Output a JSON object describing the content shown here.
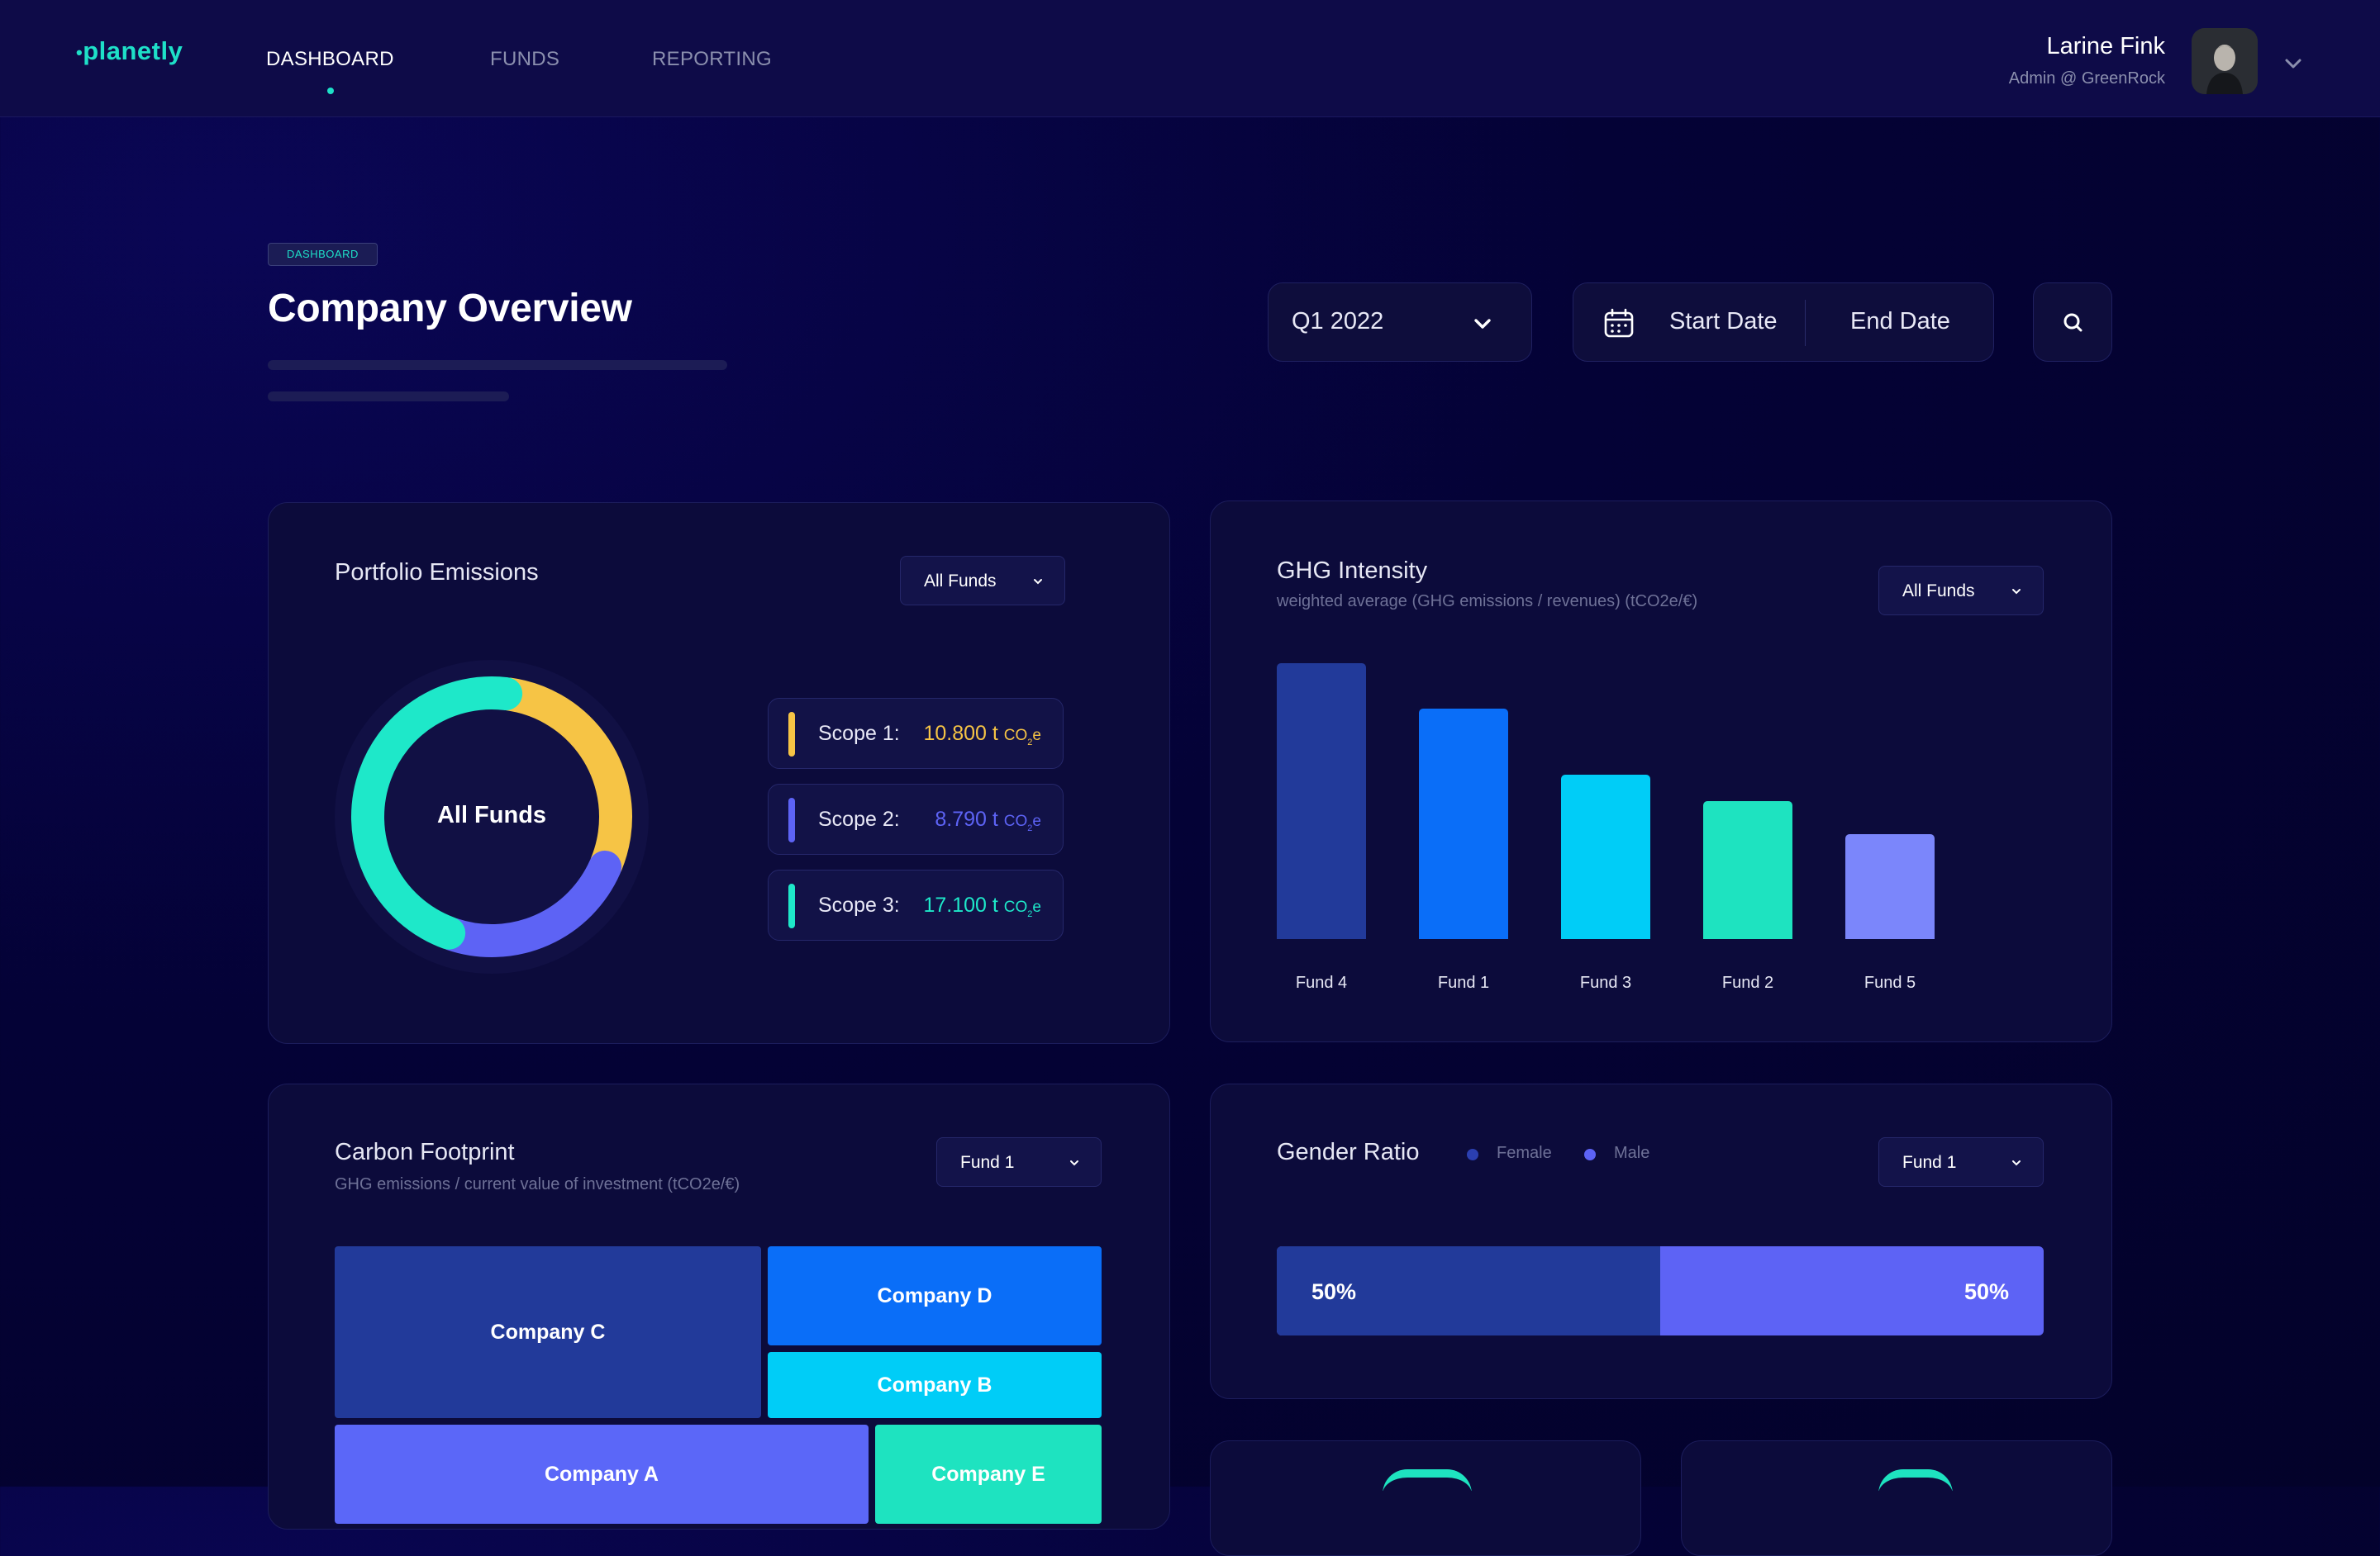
{
  "nav": {
    "logo": "planetly",
    "links": [
      {
        "label": "DASHBOARD",
        "active": true
      },
      {
        "label": "FUNDS",
        "active": false
      },
      {
        "label": "REPORTING",
        "active": false
      }
    ]
  },
  "user": {
    "name": "Larine Fink",
    "role": "Admin @ GreenRock"
  },
  "header": {
    "breadcrumb": "DASHBOARD",
    "title": "Company Overview"
  },
  "filters": {
    "period": "Q1 2022",
    "start_date": "Start Date",
    "end_date": "End Date"
  },
  "portfolio_emissions": {
    "title": "Portfolio Emissions",
    "filter": "All Funds",
    "donut_label": "All Funds",
    "scopes": [
      {
        "name": "Scope 1:",
        "value": "10.800 t",
        "unit": "CO",
        "unit_sub": "2",
        "unit_tail": "e",
        "color": "#f6c445"
      },
      {
        "name": "Scope 2:",
        "value": "8.790 t",
        "unit": "CO",
        "unit_sub": "2",
        "unit_tail": "e",
        "color": "#5d63f5"
      },
      {
        "name": "Scope 3:",
        "value": "17.100 t",
        "unit": "CO",
        "unit_sub": "2",
        "unit_tail": "e",
        "color": "#1ee8c9"
      }
    ]
  },
  "ghg_intensity": {
    "title": "GHG Intensity",
    "subtitle": "weighted average (GHG emissions / revenues) (tCO2e/€)",
    "filter": "All Funds"
  },
  "carbon_footprint": {
    "title": "Carbon Footprint",
    "subtitle": "GHG emissions / current value of investment (tCO2e/€)",
    "filter": "Fund 1",
    "companies": [
      "Company C",
      "Company D",
      "Company B",
      "Company A",
      "Company E"
    ],
    "colors": [
      "#223a9a",
      "#0a6ef8",
      "#00cdf7",
      "#5b67f8",
      "#1ee3c0"
    ]
  },
  "gender_ratio": {
    "title": "Gender Ratio",
    "filter": "Fund 1",
    "legend": [
      {
        "label": "Female",
        "color": "#2b3fb0"
      },
      {
        "label": "Male",
        "color": "#5d63f5"
      }
    ],
    "female_pct": "50%",
    "male_pct": "50%",
    "female_fraction": 0.5
  },
  "chart_data": [
    {
      "type": "pie",
      "title": "Portfolio Emissions",
      "categories": [
        "Scope 1",
        "Scope 2",
        "Scope 3"
      ],
      "values": [
        10800,
        8790,
        17100
      ],
      "unit": "t CO2e"
    },
    {
      "type": "bar",
      "title": "GHG Intensity",
      "categories": [
        "Fund 4",
        "Fund 1",
        "Fund 3",
        "Fund 2",
        "Fund 5"
      ],
      "values": [
        100,
        83.5,
        59.5,
        50,
        38
      ],
      "colors": [
        "#223a9a",
        "#0a6ef8",
        "#00cdf7",
        "#1ee3c0",
        "#7b86fb"
      ],
      "ylim": [
        0,
        100
      ],
      "grid": false
    },
    {
      "type": "heatmap",
      "title": "Carbon Footprint",
      "categories": [
        "Company C",
        "Company D",
        "Company B",
        "Company A",
        "Company E"
      ],
      "values": [
        30,
        13,
        9,
        26,
        10
      ]
    }
  ]
}
